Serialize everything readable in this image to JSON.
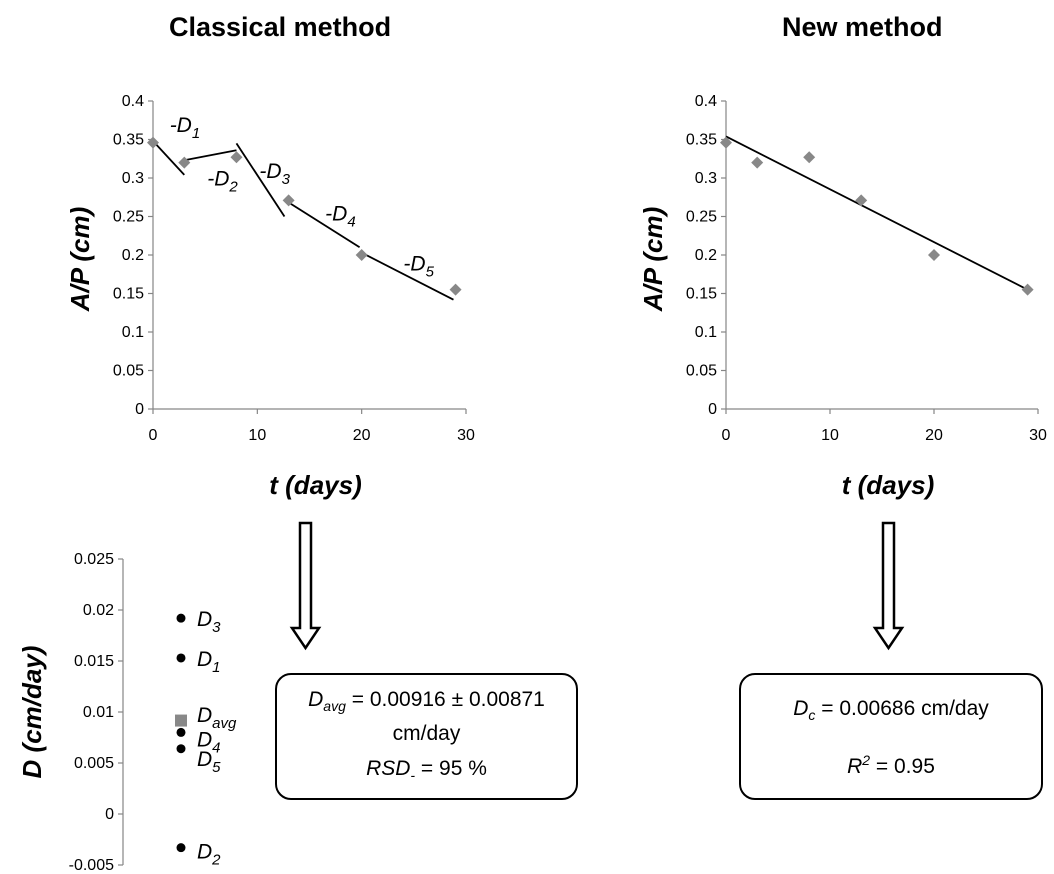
{
  "titles": {
    "left": "Classical method",
    "right": "New method"
  },
  "colors": {
    "marker": "#888888",
    "line": "#000000",
    "point": "#000000",
    "avg_marker": "#888888"
  },
  "chart_data": [
    {
      "name": "classical-scatter",
      "type": "scatter",
      "title": "Classical method",
      "xlabel": "t (days)",
      "ylabel": "A/P (cm)",
      "xlim": [
        0,
        30
      ],
      "ylim": [
        0,
        0.4
      ],
      "xticks": [
        0,
        10,
        20,
        30
      ],
      "yticks": [
        "0",
        "0.05",
        "0.1",
        "0.15",
        "0.2",
        "0.25",
        "0.3",
        "0.35",
        "0.4"
      ],
      "grid": false,
      "points": [
        {
          "x": 0,
          "y": 0.346
        },
        {
          "x": 3,
          "y": 0.32
        },
        {
          "x": 8,
          "y": 0.327
        },
        {
          "x": 13,
          "y": 0.271
        },
        {
          "x": 20,
          "y": 0.2
        },
        {
          "x": 29,
          "y": 0.155
        }
      ],
      "segments": [
        {
          "x1": 0,
          "y1": 0.348,
          "x2": 3,
          "y2": 0.304
        },
        {
          "x1": 3,
          "y1": 0.323,
          "x2": 8,
          "y2": 0.336
        },
        {
          "x1": 8,
          "y1": 0.345,
          "x2": 12.6,
          "y2": 0.25
        },
        {
          "x1": 12.8,
          "y1": 0.27,
          "x2": 19.8,
          "y2": 0.21
        },
        {
          "x1": 20,
          "y1": 0.203,
          "x2": 28.8,
          "y2": 0.142
        }
      ],
      "annotations": [
        {
          "text": "-D",
          "sub": "1",
          "x": 1.6,
          "y": 0.36
        },
        {
          "text": "-D",
          "sub": "2",
          "x": 5.2,
          "y": 0.29
        },
        {
          "text": "-D",
          "sub": "3",
          "x": 10.2,
          "y": 0.3
        },
        {
          "text": "-D",
          "sub": "4",
          "x": 16.5,
          "y": 0.245
        },
        {
          "text": "-D",
          "sub": "5",
          "x": 24.0,
          "y": 0.18
        }
      ]
    },
    {
      "name": "new-scatter",
      "type": "scatter",
      "title": "New method",
      "xlabel": "t (days)",
      "ylabel": "A/P (cm)",
      "xlim": [
        0,
        30
      ],
      "ylim": [
        0,
        0.4
      ],
      "xticks": [
        0,
        10,
        20,
        30
      ],
      "yticks": [
        "0",
        "0.05",
        "0.1",
        "0.15",
        "0.2",
        "0.25",
        "0.3",
        "0.35",
        "0.4"
      ],
      "grid": false,
      "points": [
        {
          "x": 0,
          "y": 0.346
        },
        {
          "x": 3,
          "y": 0.32
        },
        {
          "x": 8,
          "y": 0.327
        },
        {
          "x": 13,
          "y": 0.271
        },
        {
          "x": 20,
          "y": 0.2
        },
        {
          "x": 29,
          "y": 0.155
        }
      ],
      "fit_line": {
        "x1": 0,
        "y1": 0.354,
        "x2": 29,
        "y2": 0.155
      }
    },
    {
      "name": "d-values",
      "type": "scatter",
      "ylabel": "D (cm/day)",
      "ylim": [
        -0.005,
        0.025
      ],
      "yticks": [
        "-0.005",
        "0",
        "0.005",
        "0.01",
        "0.015",
        "0.02",
        "0.025"
      ],
      "grid": false,
      "points": [
        {
          "label": "D",
          "sub": "3",
          "y": 0.0192
        },
        {
          "label": "D",
          "sub": "1",
          "y": 0.0153
        },
        {
          "label": "D",
          "sub": "avg",
          "y": 0.00916,
          "avg": true
        },
        {
          "label": "D",
          "sub": "4",
          "y": 0.008
        },
        {
          "label": "D",
          "sub": "5",
          "y": 0.0064
        },
        {
          "label": "D",
          "sub": "2",
          "y": -0.0033
        }
      ]
    }
  ],
  "result_left": {
    "symbol": "D",
    "sub": "avg",
    "eq": "= 0.00916",
    "pm": "±",
    "err": "0.00871",
    "unit": "cm/day",
    "rsd_symbol": "RSD",
    "rsd_sub": "-",
    "rsd_value": " = 95 %"
  },
  "result_right": {
    "symbol": "D",
    "sub": "c",
    "value": "= 0.00686 cm/day",
    "r_symbol": "R",
    "r_sup": "2",
    "r_value": "= 0.95"
  }
}
